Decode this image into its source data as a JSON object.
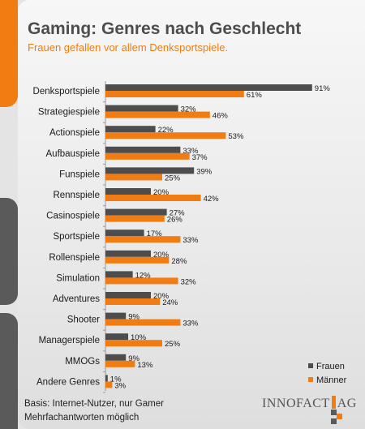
{
  "title": "Gaming: Genres nach Geschlecht",
  "subtitle": "Frauen gefallen vor allem Denksportspiele.",
  "footnote_line1": "Basis: Internet-Nutzer, nur Gamer",
  "footnote_line2": "Mehrfachantworten möglich",
  "logo_left": "INNOFACT",
  "logo_right": "AG",
  "colors": {
    "frauen": "#4d4d4d",
    "maenner": "#f07c12",
    "accent": "#f07c12"
  },
  "chart_data": {
    "type": "bar",
    "orientation": "horizontal",
    "categories": [
      "Denksportspiele",
      "Strategiespiele",
      "Actionspiele",
      "Aufbauspiele",
      "Funspiele",
      "Rennspiele",
      "Casinospiele",
      "Sportspiele",
      "Rollenspiele",
      "Simulation",
      "Adventures",
      "Shooter",
      "Managerspiele",
      "MMOGs",
      "Andere Genres"
    ],
    "series": [
      {
        "name": "Frauen",
        "values": [
          91,
          32,
          22,
          33,
          39,
          20,
          27,
          17,
          20,
          12,
          20,
          9,
          10,
          9,
          1
        ],
        "labels": [
          "91%",
          "32%",
          "22%",
          "33%",
          "39%",
          "20%",
          "27%",
          "17%",
          "20%",
          "12%",
          "20%",
          "9%",
          "10%",
          "9%",
          "1%"
        ]
      },
      {
        "name": "Männer",
        "values": [
          61,
          46,
          53,
          37,
          25,
          42,
          26,
          33,
          28,
          32,
          24,
          33,
          25,
          13,
          3
        ],
        "labels": [
          "61%",
          "46%",
          "53%",
          "37%",
          "25%",
          "42%",
          "26%",
          "33%",
          "28%",
          "32%",
          "24%",
          "33%",
          "25%",
          "13%",
          "3%"
        ]
      }
    ],
    "xlim": [
      0,
      100
    ],
    "unit": "%",
    "grid": false,
    "legend_position": "bottom-right"
  }
}
